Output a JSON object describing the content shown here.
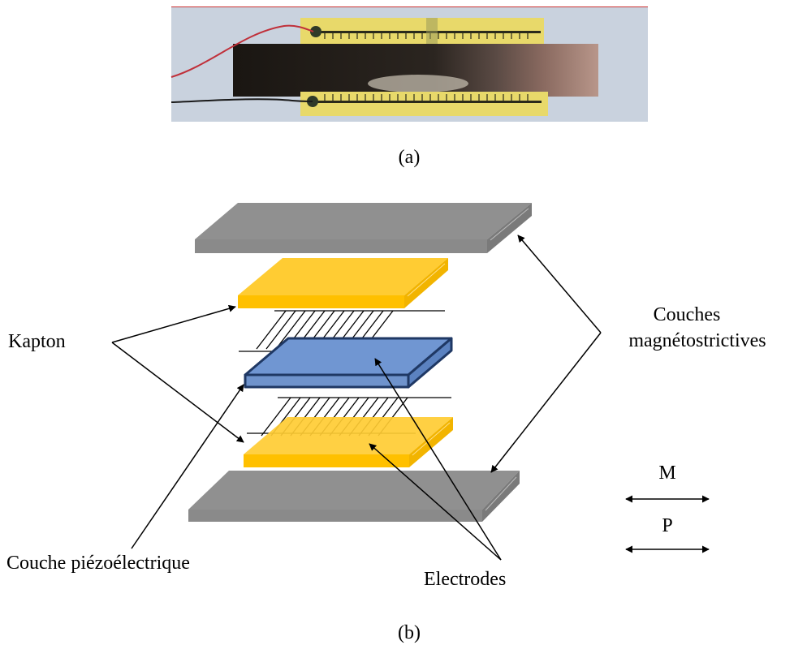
{
  "captions": {
    "a": "(a)",
    "b": "(b)"
  },
  "labels": {
    "kapton": "Kapton",
    "couches_line1": "Couches",
    "couches_line2": "magnétostrictives",
    "piezo": "Couche piézoélectrique",
    "electrodes": "Electrodes",
    "m": "M",
    "p": "P"
  },
  "colors": {
    "magnetostrictive": "#8c8c8c",
    "kapton": "#ffc000",
    "piezo": "#6f93cc",
    "piezo_border": "#1f3864",
    "line": "#000000"
  }
}
